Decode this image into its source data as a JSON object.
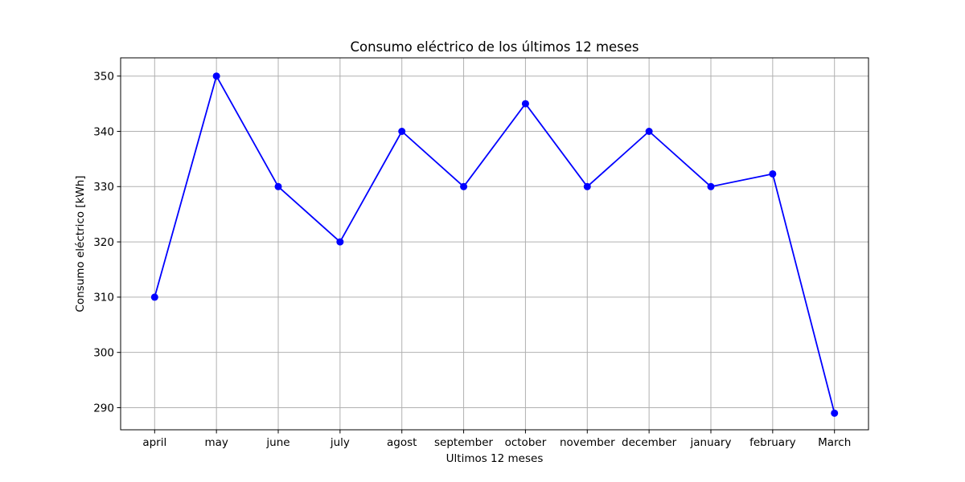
{
  "chart_data": {
    "type": "line",
    "title": "Consumo eléctrico de los últimos 12 meses",
    "xlabel": "Ultimos 12 meses",
    "ylabel": "Consumo eléctrico [kWh]",
    "categories": [
      "april",
      "may",
      "june",
      "july",
      "agost",
      "september",
      "october",
      "november",
      "december",
      "january",
      "february",
      "March"
    ],
    "series": [
      {
        "values": [
          310,
          350,
          330,
          320,
          340,
          330,
          345,
          330,
          340,
          330,
          332.3,
          289
        ],
        "color": "#0000ff",
        "marker": "circle"
      }
    ],
    "ylim": [
      286,
      353.3
    ],
    "yticks": [
      290,
      300,
      310,
      320,
      330,
      340,
      350
    ],
    "grid": true,
    "legend": "none"
  }
}
